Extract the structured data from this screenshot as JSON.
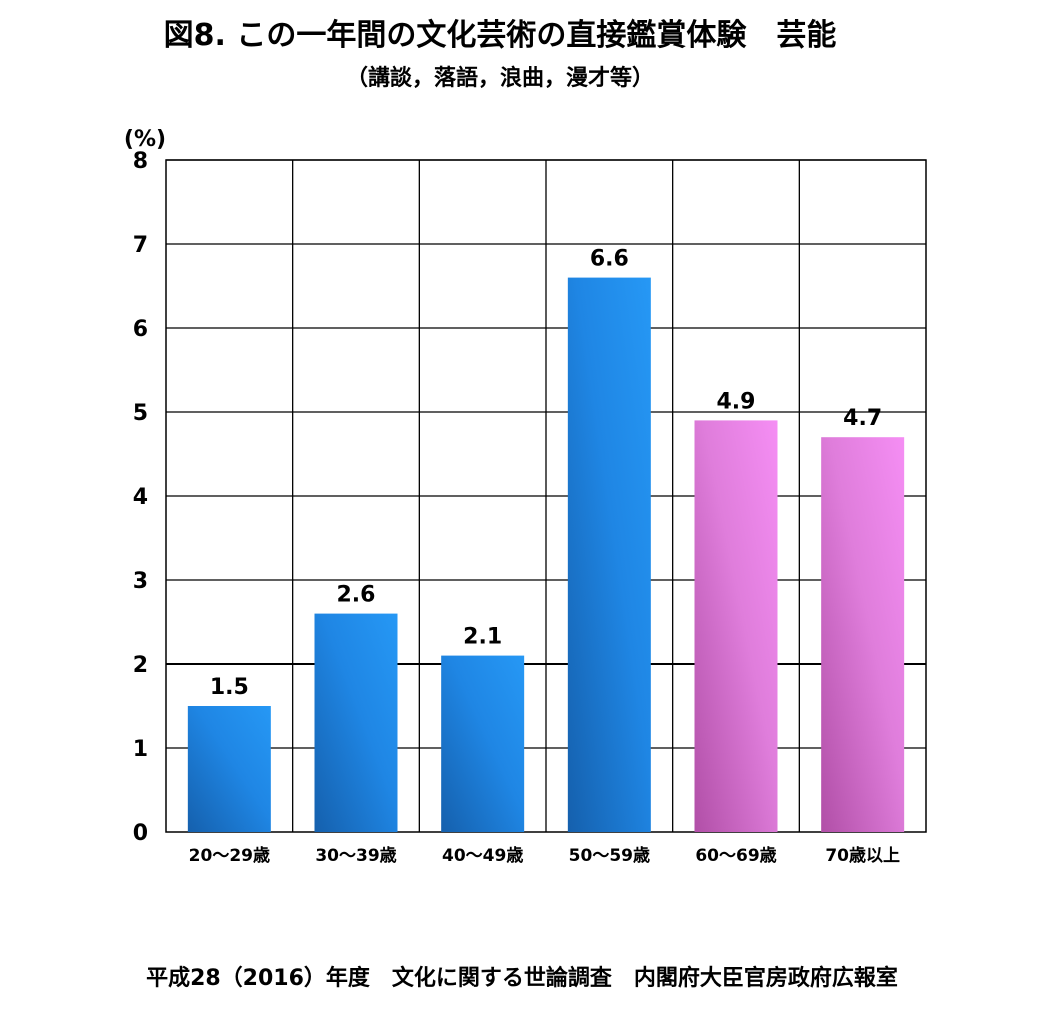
{
  "title": "図8.  この一年間の文化芸術の直接鑑賞体験　芸能",
  "subtitle": "（講談，落語，浪曲，漫才等）",
  "footer": "平成28（2016）年度　文化に関する世論調査　内閣府大臣官房政府広報室",
  "chart_data": {
    "type": "bar",
    "title": "図8.  この一年間の文化芸術の直接鑑賞体験　芸能",
    "subtitle": "（講談，落語，浪曲，漫才等）",
    "ylabel": "(%)",
    "xlabel": "",
    "ylim": [
      0,
      8
    ],
    "yticks": [
      0,
      1,
      2,
      3,
      4,
      5,
      6,
      7,
      8
    ],
    "grid": true,
    "categories": [
      "20～29歳",
      "30～39歳",
      "40～49歳",
      "50～59歳",
      "60～69歳",
      "70歳以上"
    ],
    "values": [
      1.5,
      2.6,
      2.1,
      6.6,
      4.9,
      4.7
    ],
    "value_labels": [
      "1.5",
      "2.6",
      "2.1",
      "6.6",
      "4.9",
      "4.7"
    ],
    "bar_colors": [
      "#2a8ee8",
      "#2a8ee8",
      "#2a8ee8",
      "#2a8ee8",
      "#ef86ea",
      "#ef86ea"
    ]
  }
}
